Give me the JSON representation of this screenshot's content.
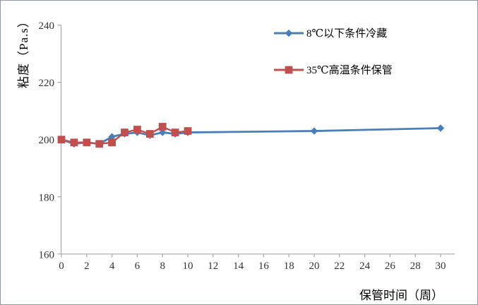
{
  "chart_data": {
    "type": "line",
    "title": "",
    "xlabel": "保管时间（周）",
    "ylabel": "粘度（Pa.s）",
    "xlim": [
      0,
      30
    ],
    "ylim": [
      160,
      240
    ],
    "x_ticks": [
      0,
      2,
      4,
      6,
      8,
      10,
      12,
      14,
      16,
      18,
      20,
      22,
      24,
      26,
      28,
      30
    ],
    "y_ticks": [
      160,
      180,
      200,
      220,
      240
    ],
    "grid": false,
    "legend_position": "top-center",
    "axis_color": "#a6a6a6",
    "tick_label_color": "#333333",
    "series": [
      {
        "name": "8℃以下条件冷藏",
        "color": "#4a7ebb",
        "marker": "diamond",
        "x": [
          0,
          1,
          2,
          3,
          4,
          5,
          6,
          7,
          8,
          9,
          10,
          20,
          30
        ],
        "y": [
          200,
          198.5,
          199,
          198.5,
          201,
          202,
          202.5,
          201.5,
          202.5,
          202,
          202.5,
          203,
          204
        ]
      },
      {
        "name": "35℃高温条件保管",
        "color": "#c0504d",
        "marker": "square",
        "x": [
          0,
          1,
          2,
          3,
          4,
          5,
          6,
          7,
          8,
          9,
          10
        ],
        "y": [
          200,
          199,
          199,
          198.5,
          199,
          202.5,
          203.5,
          202,
          204.5,
          202.5,
          203
        ]
      }
    ]
  }
}
